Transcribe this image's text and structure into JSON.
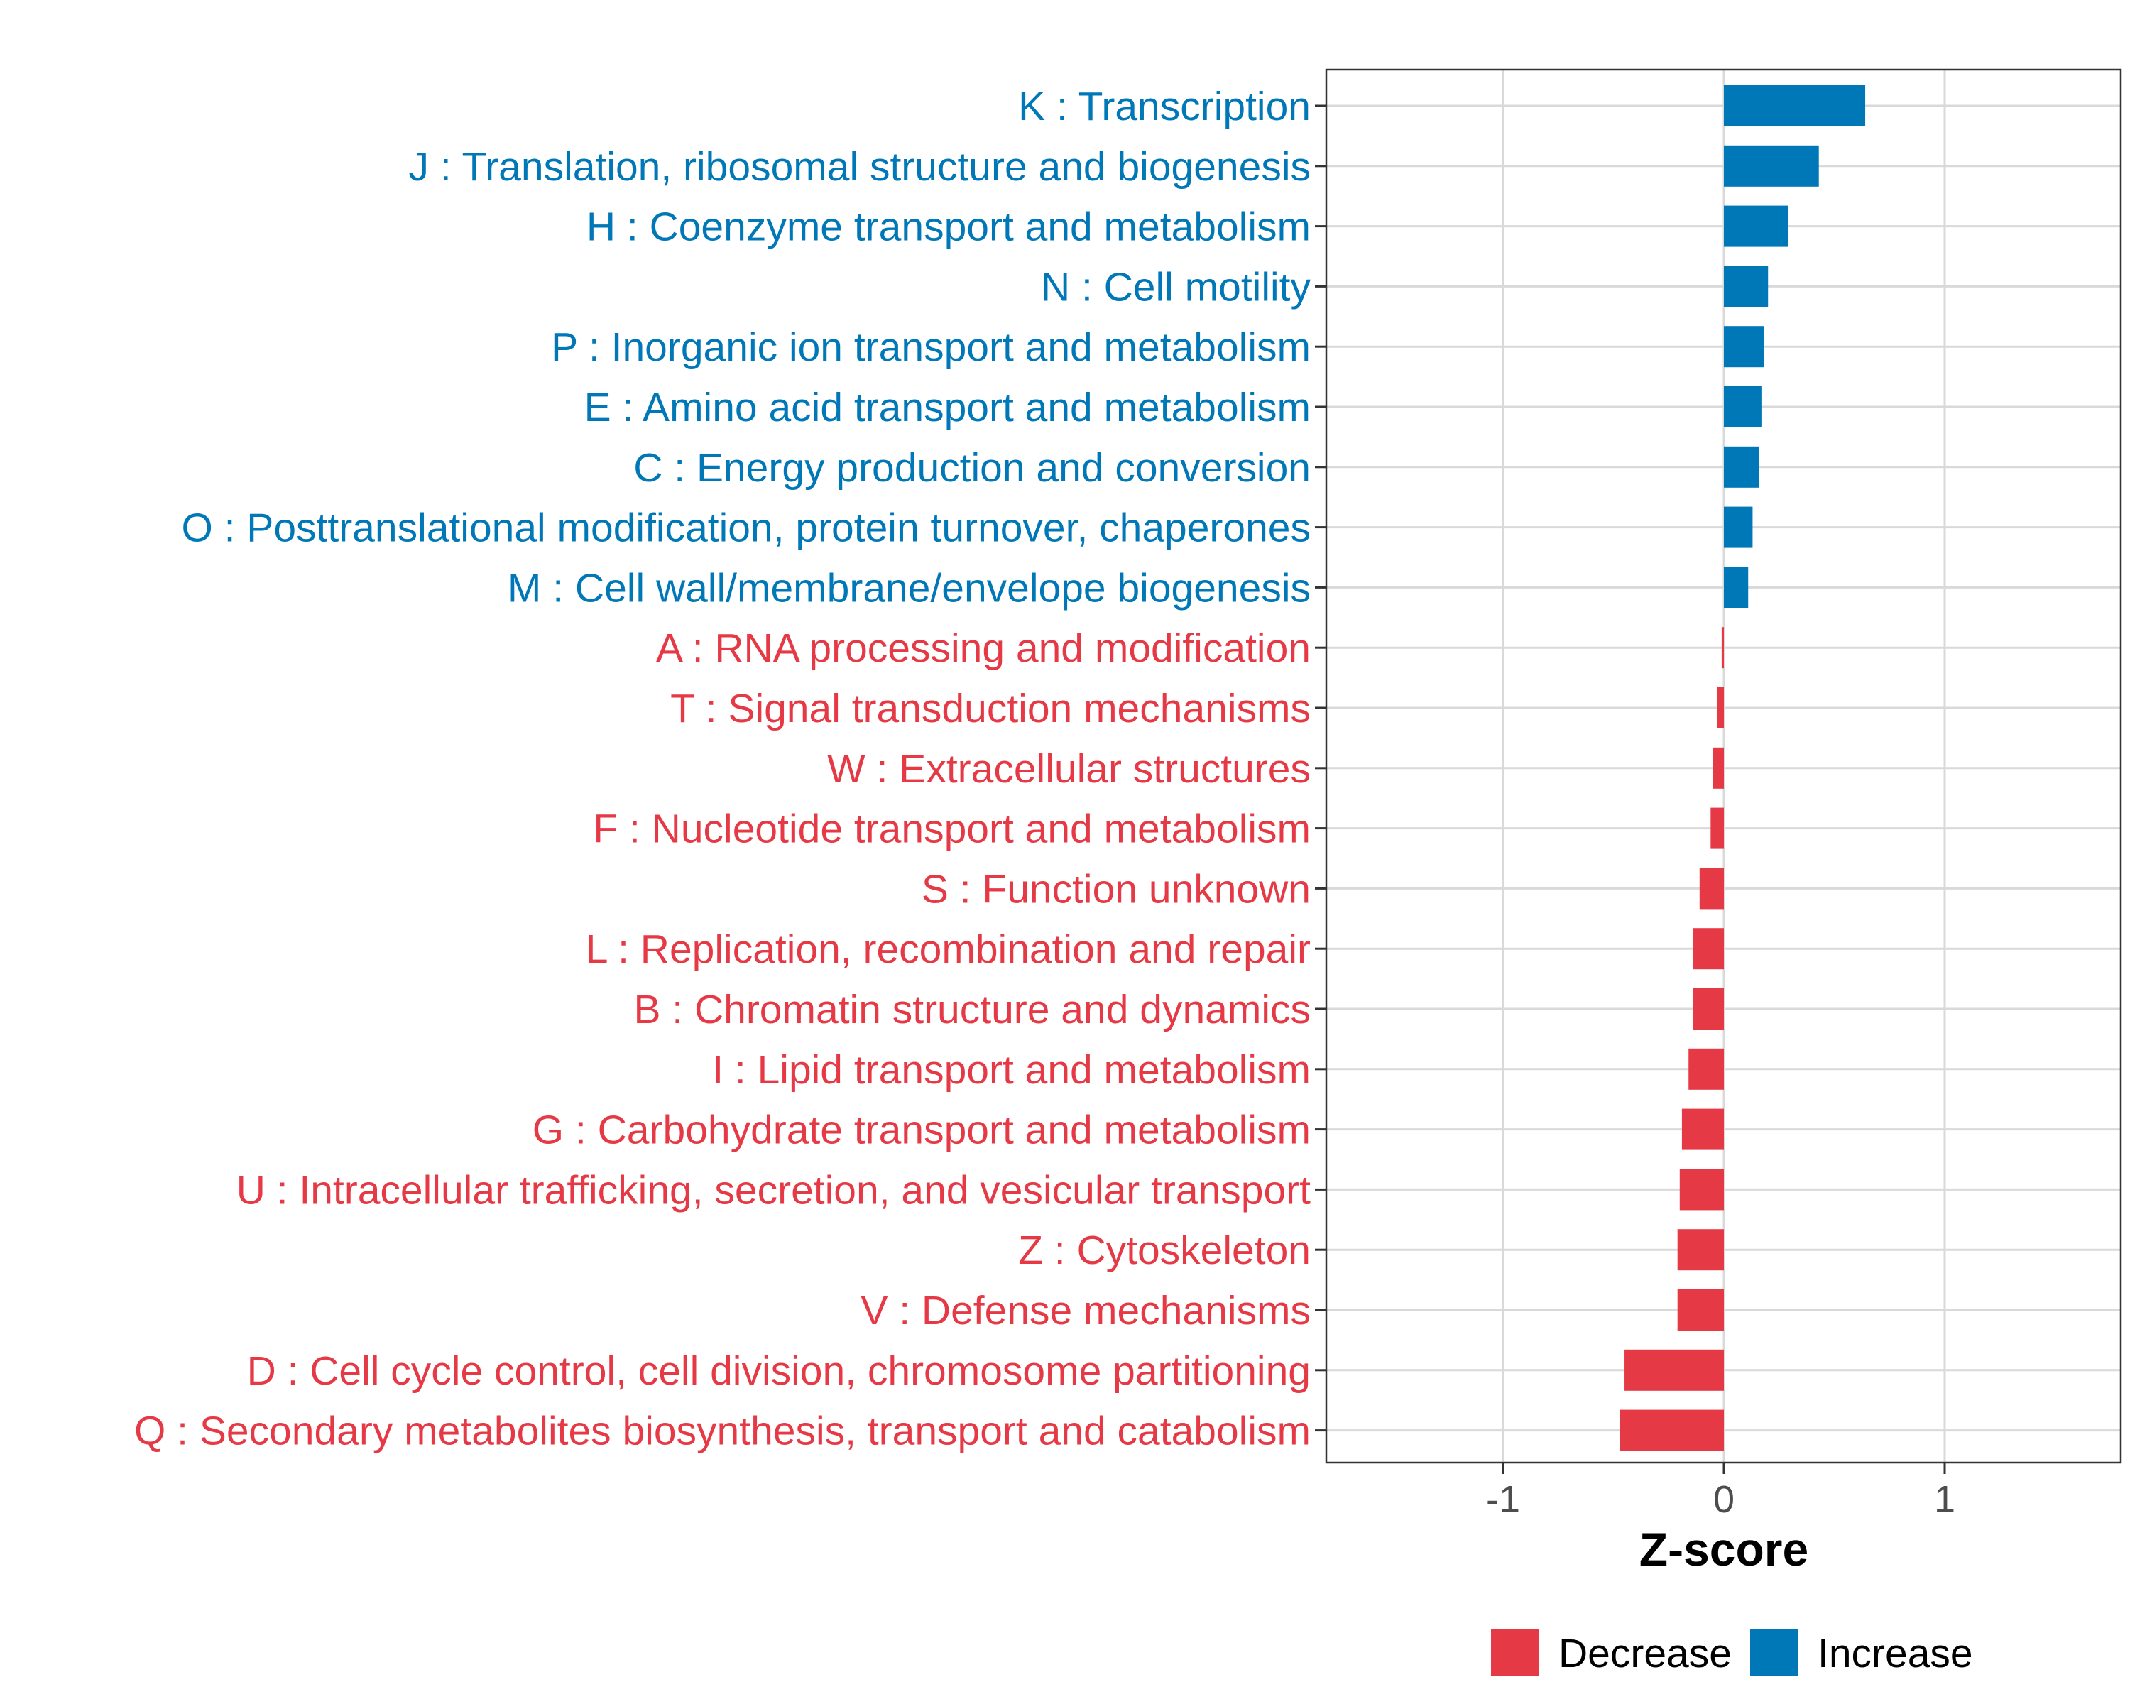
{
  "chart_data": {
    "type": "bar",
    "orientation": "horizontal",
    "xlabel": "Z-score",
    "xlim": [
      -1.8,
      1.8
    ],
    "xticks": [
      -1,
      0,
      1
    ],
    "xtick_labels": [
      "-1",
      "0",
      "1"
    ],
    "grid": true,
    "colors": {
      "Decrease": "#E63946",
      "Increase": "#0077B6"
    },
    "legend": {
      "placement": "bottom",
      "entries": [
        "Decrease",
        "Increase"
      ]
    },
    "categories": [
      "K : Transcription",
      "J : Translation, ribosomal structure and biogenesis",
      "H : Coenzyme transport and metabolism",
      "N : Cell motility",
      "P : Inorganic ion transport and metabolism",
      "E : Amino acid transport and metabolism",
      "C : Energy production and conversion",
      "O : Posttranslational modification, protein turnover, chaperones",
      "M : Cell wall/membrane/envelope biogenesis",
      "A : RNA processing and modification",
      "T : Signal transduction mechanisms",
      "W : Extracellular structures",
      "F : Nucleotide transport and metabolism",
      "S : Function unknown",
      "L : Replication, recombination and repair",
      "B : Chromatin structure and dynamics",
      "I : Lipid transport and metabolism",
      "G : Carbohydrate transport and metabolism",
      "U : Intracellular trafficking, secretion, and vesicular transport",
      "Z : Cytoskeleton",
      "V : Defense mechanisms",
      "D : Cell cycle control, cell division, chromosome partitioning",
      "Q : Secondary metabolites biosynthesis, transport and catabolism"
    ],
    "values": [
      0.64,
      0.43,
      0.29,
      0.2,
      0.18,
      0.17,
      0.16,
      0.13,
      0.11,
      -0.01,
      -0.03,
      -0.05,
      -0.06,
      -0.11,
      -0.14,
      -0.14,
      -0.16,
      -0.19,
      -0.2,
      -0.21,
      -0.21,
      -0.45,
      -0.47
    ],
    "direction": [
      "Increase",
      "Increase",
      "Increase",
      "Increase",
      "Increase",
      "Increase",
      "Increase",
      "Increase",
      "Increase",
      "Decrease",
      "Decrease",
      "Decrease",
      "Decrease",
      "Decrease",
      "Decrease",
      "Decrease",
      "Decrease",
      "Decrease",
      "Decrease",
      "Decrease",
      "Decrease",
      "Decrease",
      "Decrease"
    ]
  }
}
